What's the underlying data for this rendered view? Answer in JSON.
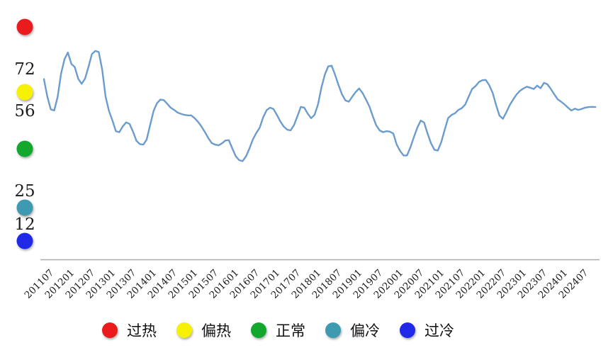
{
  "chart_data": {
    "type": "line",
    "title": "",
    "x_start": "2011-07",
    "x_interval": "monthly",
    "x_labels": [
      "201107",
      "201201",
      "201207",
      "201301",
      "201307",
      "201401",
      "201407",
      "201501",
      "201507",
      "201601",
      "201607",
      "201701",
      "201707",
      "201801",
      "201807",
      "201901",
      "201907",
      "202001",
      "202007",
      "202101",
      "202107",
      "202201",
      "202207",
      "202301",
      "202307",
      "202401",
      "202407"
    ],
    "y_ticks": [
      72,
      56,
      25,
      12
    ],
    "ylim": [
      0,
      93
    ],
    "grid": false,
    "legend_position": "bottom",
    "series": [
      {
        "color": "#6b9ccd",
        "values": [
          68.3,
          61.5,
          56.6,
          56.2,
          61.4,
          70.5,
          76.0,
          78.6,
          74.2,
          73.0,
          68.5,
          66.5,
          68.5,
          73.0,
          78.0,
          79.2,
          78.8,
          72.0,
          61.5,
          56.0,
          52.3,
          48.2,
          47.8,
          50.0,
          51.6,
          51.0,
          48.0,
          44.5,
          43.2,
          43.0,
          45.0,
          50.5,
          56.0,
          59.0,
          60.4,
          60.2,
          58.8,
          57.3,
          56.4,
          55.4,
          54.9,
          54.5,
          54.3,
          54.3,
          53.2,
          51.8,
          50.0,
          47.8,
          45.5,
          43.6,
          43.0,
          42.7,
          43.5,
          44.6,
          44.7,
          41.5,
          38.5,
          37.0,
          36.6,
          38.5,
          41.5,
          45.0,
          47.5,
          49.6,
          53.5,
          56.3,
          57.3,
          56.8,
          54.5,
          52.0,
          50.0,
          48.8,
          48.5,
          50.5,
          54.0,
          57.6,
          57.3,
          55.0,
          53.2,
          54.5,
          58.5,
          65.0,
          70.0,
          73.3,
          73.5,
          70.0,
          66.0,
          62.5,
          60.1,
          59.6,
          61.5,
          63.3,
          64.7,
          63.0,
          60.5,
          57.8,
          54.0,
          50.5,
          48.5,
          47.8,
          48.2,
          48.0,
          47.3,
          43.0,
          40.5,
          38.8,
          38.8,
          42.0,
          45.9,
          49.5,
          52.3,
          51.5,
          47.3,
          43.5,
          41.0,
          40.7,
          44.0,
          48.7,
          53.2,
          54.5,
          55.1,
          56.4,
          57.1,
          58.5,
          61.5,
          64.5,
          65.6,
          67.2,
          67.9,
          68.0,
          66.0,
          63.0,
          58.3,
          54.2,
          53.0,
          55.5,
          58.3,
          60.5,
          62.4,
          63.8,
          64.7,
          65.4,
          65.0,
          64.5,
          65.8,
          64.8,
          66.9,
          66.3,
          64.5,
          62.4,
          60.5,
          59.6,
          58.5,
          57.3,
          56.2,
          56.9,
          56.4,
          56.8,
          57.3,
          57.5,
          57.6,
          57.5
        ]
      }
    ],
    "zones": [
      {
        "name": "overheat",
        "label": "过热",
        "color": "#ea1b1d",
        "axis_marker_value": 88.5
      },
      {
        "name": "warm",
        "label": "偏热",
        "color": "#f6f100",
        "axis_marker_value": 63.3
      },
      {
        "name": "normal",
        "label": "正常",
        "color": "#13a82d",
        "axis_marker_value": 41.4
      },
      {
        "name": "cool",
        "label": "偏冷",
        "color": "#3d9ab1",
        "axis_marker_value": 18.6
      },
      {
        "name": "overcool",
        "label": "过冷",
        "color": "#2129e8",
        "axis_marker_value": 5.8
      }
    ]
  },
  "colors": {
    "line": "#6b9ccd",
    "axis": "#ababab",
    "text": "#1c1c1c"
  }
}
